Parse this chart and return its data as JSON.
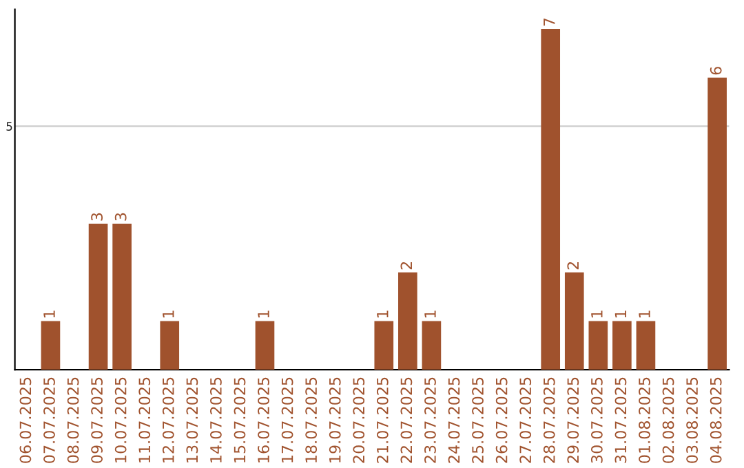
{
  "chart_data": {
    "type": "bar",
    "categories": [
      "06.07.2025",
      "07.07.2025",
      "08.07.2025",
      "09.07.2025",
      "10.07.2025",
      "11.07.2025",
      "12.07.2025",
      "13.07.2025",
      "14.07.2025",
      "15.07.2025",
      "16.07.2025",
      "17.07.2025",
      "18.07.2025",
      "19.07.2025",
      "20.07.2025",
      "21.07.2025",
      "22.07.2025",
      "23.07.2025",
      "24.07.2025",
      "25.07.2025",
      "26.07.2025",
      "27.07.2025",
      "28.07.2025",
      "29.07.2025",
      "30.07.2025",
      "31.07.2025",
      "01.08.2025",
      "02.08.2025",
      "03.08.2025",
      "04.08.2025"
    ],
    "values": [
      0,
      1,
      0,
      3,
      3,
      0,
      1,
      0,
      0,
      0,
      1,
      0,
      0,
      0,
      0,
      1,
      2,
      1,
      0,
      0,
      0,
      0,
      7,
      2,
      1,
      1,
      1,
      0,
      0,
      6
    ],
    "value_labels": [
      null,
      "1",
      null,
      "3",
      "3",
      null,
      "1",
      null,
      null,
      null,
      "1",
      null,
      null,
      null,
      null,
      "1",
      "2",
      "1",
      null,
      null,
      null,
      null,
      "7",
      "2",
      "1",
      "1",
      "1",
      null,
      null,
      "6"
    ],
    "color": "#a0522d",
    "ylim": [
      0,
      7.4
    ],
    "yticks": [
      5
    ],
    "grid": "y"
  }
}
